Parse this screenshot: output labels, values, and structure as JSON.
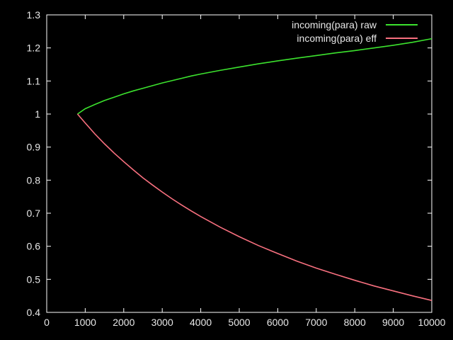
{
  "chart_data": {
    "type": "line",
    "title": "",
    "xlabel": "",
    "ylabel": "",
    "x_range": [
      0,
      10000
    ],
    "y_range": [
      0.4,
      1.3
    ],
    "grid": "off",
    "legend_position": "top-right-inside",
    "x_ticks": [
      {
        "value": 0,
        "label": "0"
      },
      {
        "value": 1000,
        "label": "1000"
      },
      {
        "value": 2000,
        "label": "2000"
      },
      {
        "value": 3000,
        "label": "3000"
      },
      {
        "value": 4000,
        "label": "4000"
      },
      {
        "value": 5000,
        "label": "5000"
      },
      {
        "value": 6000,
        "label": "6000"
      },
      {
        "value": 7000,
        "label": "7000"
      },
      {
        "value": 8000,
        "label": "8000"
      },
      {
        "value": 9000,
        "label": "9000"
      },
      {
        "value": 10000,
        "label": "10000"
      }
    ],
    "y_ticks": [
      {
        "value": 1.3,
        "label": "1.3"
      },
      {
        "value": 1.2,
        "label": "1.2"
      },
      {
        "value": 1.1,
        "label": "1.1"
      },
      {
        "value": 1.0,
        "label": "1"
      },
      {
        "value": 0.9,
        "label": "0.9"
      },
      {
        "value": 0.8,
        "label": "0.8"
      },
      {
        "value": 0.7,
        "label": "0.7"
      },
      {
        "value": 0.6,
        "label": "0.6"
      },
      {
        "value": 0.5,
        "label": "0.5"
      },
      {
        "value": 0.4,
        "label": "0.4"
      }
    ],
    "series": [
      {
        "name": "incoming(para) raw",
        "color": "#3ce22e",
        "points": [
          [
            800,
            1.0
          ],
          [
            1000,
            1.016
          ],
          [
            1250,
            1.029
          ],
          [
            1500,
            1.041
          ],
          [
            1750,
            1.051
          ],
          [
            2000,
            1.061
          ],
          [
            2250,
            1.07
          ],
          [
            2500,
            1.078
          ],
          [
            2750,
            1.086
          ],
          [
            3000,
            1.094
          ],
          [
            3250,
            1.101
          ],
          [
            3500,
            1.108
          ],
          [
            3750,
            1.115
          ],
          [
            4000,
            1.121
          ],
          [
            4500,
            1.132
          ],
          [
            5000,
            1.142
          ],
          [
            5500,
            1.152
          ],
          [
            6000,
            1.161
          ],
          [
            6500,
            1.169
          ],
          [
            7000,
            1.177
          ],
          [
            7500,
            1.185
          ],
          [
            8000,
            1.192
          ],
          [
            8500,
            1.2
          ],
          [
            9000,
            1.208
          ],
          [
            9500,
            1.217
          ],
          [
            10000,
            1.228
          ]
        ]
      },
      {
        "name": "incoming(para) eff",
        "color": "#f8707f",
        "points": [
          [
            800,
            1.0
          ],
          [
            1000,
            0.973
          ],
          [
            1250,
            0.94
          ],
          [
            1500,
            0.91
          ],
          [
            1750,
            0.882
          ],
          [
            2000,
            0.856
          ],
          [
            2250,
            0.831
          ],
          [
            2500,
            0.807
          ],
          [
            2750,
            0.785
          ],
          [
            3000,
            0.764
          ],
          [
            3250,
            0.744
          ],
          [
            3500,
            0.725
          ],
          [
            3750,
            0.707
          ],
          [
            4000,
            0.69
          ],
          [
            4500,
            0.658
          ],
          [
            5000,
            0.629
          ],
          [
            5500,
            0.602
          ],
          [
            6000,
            0.578
          ],
          [
            6500,
            0.555
          ],
          [
            7000,
            0.534
          ],
          [
            7500,
            0.515
          ],
          [
            8000,
            0.497
          ],
          [
            8500,
            0.48
          ],
          [
            9000,
            0.465
          ],
          [
            9500,
            0.45
          ],
          [
            10000,
            0.436
          ]
        ]
      }
    ],
    "colors": {
      "background": "#000000",
      "border": "#ffffff",
      "text": "#e8e8e8"
    }
  }
}
